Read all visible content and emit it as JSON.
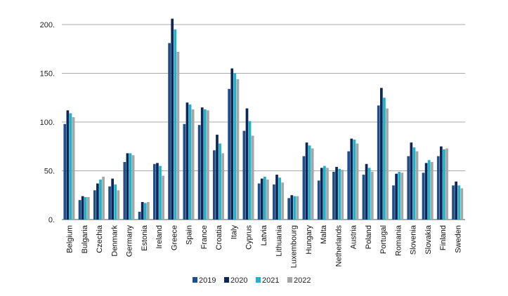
{
  "chart_data": {
    "type": "bar",
    "title": "",
    "xlabel": "",
    "ylabel": "",
    "ylim": [
      0,
      200
    ],
    "yticks": [
      0,
      50,
      100,
      150,
      200
    ],
    "ytick_labels": [
      "0.",
      "50.",
      "100.",
      "150.",
      "200."
    ],
    "grid": "horizontal",
    "legend_position": "bottom",
    "categories": [
      "Belgium",
      "Bulgaria",
      "Czechia",
      "Denmark",
      "Germany",
      "Estonia",
      "Ireland",
      "Greece",
      "Spain",
      "France",
      "Croatia",
      "Italy",
      "Cyprus",
      "Latvia",
      "Lithuania",
      "Luxembourg",
      "Hungary",
      "Malta",
      "Netherlands",
      "Austria",
      "Poland",
      "Portugal",
      "Romania",
      "Slovenia",
      "Slovakia",
      "Finland",
      "Sweden"
    ],
    "series": [
      {
        "name": "2019",
        "color": "#1F4E8C",
        "values": [
          98,
          20,
          30,
          34,
          59,
          8,
          57,
          181,
          98,
          97,
          71,
          134,
          91,
          37,
          36,
          22,
          65,
          40,
          49,
          70,
          46,
          117,
          35,
          65,
          48,
          65,
          35
        ]
      },
      {
        "name": "2020",
        "color": "#0E2557",
        "values": [
          112,
          24,
          37,
          42,
          68,
          18,
          58,
          206,
          120,
          115,
          87,
          155,
          114,
          42,
          46,
          25,
          79,
          53,
          54,
          83,
          57,
          135,
          47,
          79,
          58,
          75,
          39
        ]
      },
      {
        "name": "2021",
        "color": "#1FB3C9",
        "values": [
          109,
          23,
          41,
          36,
          68,
          17,
          55,
          195,
          118,
          113,
          78,
          150,
          101,
          44,
          43,
          24,
          76,
          55,
          52,
          82,
          53,
          125,
          49,
          74,
          61,
          72,
          35
        ]
      },
      {
        "name": "2022",
        "color": "#A6A6A6",
        "values": [
          105,
          23,
          44,
          30,
          66,
          18,
          45,
          172,
          113,
          112,
          68,
          144,
          86,
          41,
          38,
          24,
          73,
          53,
          51,
          78,
          49,
          114,
          48,
          70,
          59,
          73,
          32
        ]
      }
    ]
  }
}
